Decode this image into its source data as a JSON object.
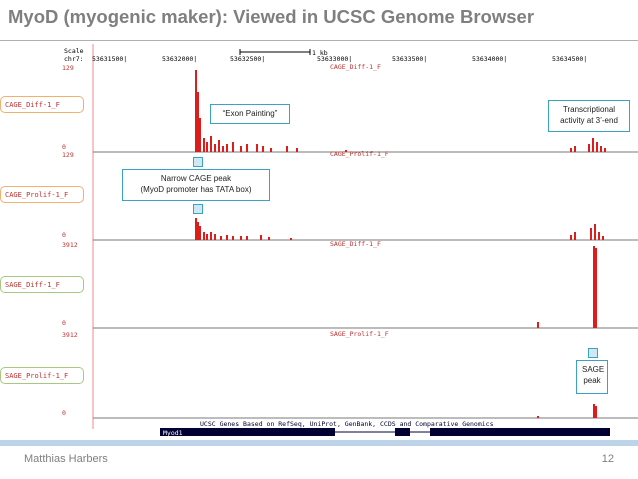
{
  "slide": {
    "title": "MyoD (myogenic maker): Viewed in UCSC Genome Browser",
    "author": "Matthias Harbers",
    "page_number": "12"
  },
  "browser": {
    "scale_label": "Scale",
    "chrom_label": "chr7:",
    "scale_bar": "1 kb",
    "positions": [
      "53631500|",
      "53632000|",
      "53632500|",
      "53633000|",
      "53633500|",
      "53634000|",
      "53634500|"
    ],
    "tracks": [
      {
        "name": "CAGE_Diff-1_F",
        "max": "129",
        "min": "0"
      },
      {
        "name": "CAGE_Prolif-1_F",
        "max": "129",
        "min": "0"
      },
      {
        "name": "SAGE_Diff-1_F",
        "max": "3912",
        "min": "0"
      },
      {
        "name": "SAGE_Prolif-1_F",
        "max": "3912",
        "min": "0"
      }
    ],
    "gene_track_title": "UCSC Genes Based on RefSeq, UniProt, GenBank, CCDS and Comparative Genomics",
    "gene_name": "Myod1"
  },
  "callouts": {
    "exon_painting": "“Exon Painting”",
    "transcriptional_line1": "Transcriptional",
    "transcriptional_line2": "activity at 3’-end",
    "narrow_line1": "Narrow CAGE peak",
    "narrow_line2": "(MyoD promoter has TATA box)",
    "sage_line1": "SAGE",
    "sage_line2": "peak"
  },
  "colors": {
    "signal": "#dd1c1c",
    "callout_border": "#3aa3c2",
    "title": "#7f7f7f",
    "footer_band": "#bcd3ea"
  }
}
